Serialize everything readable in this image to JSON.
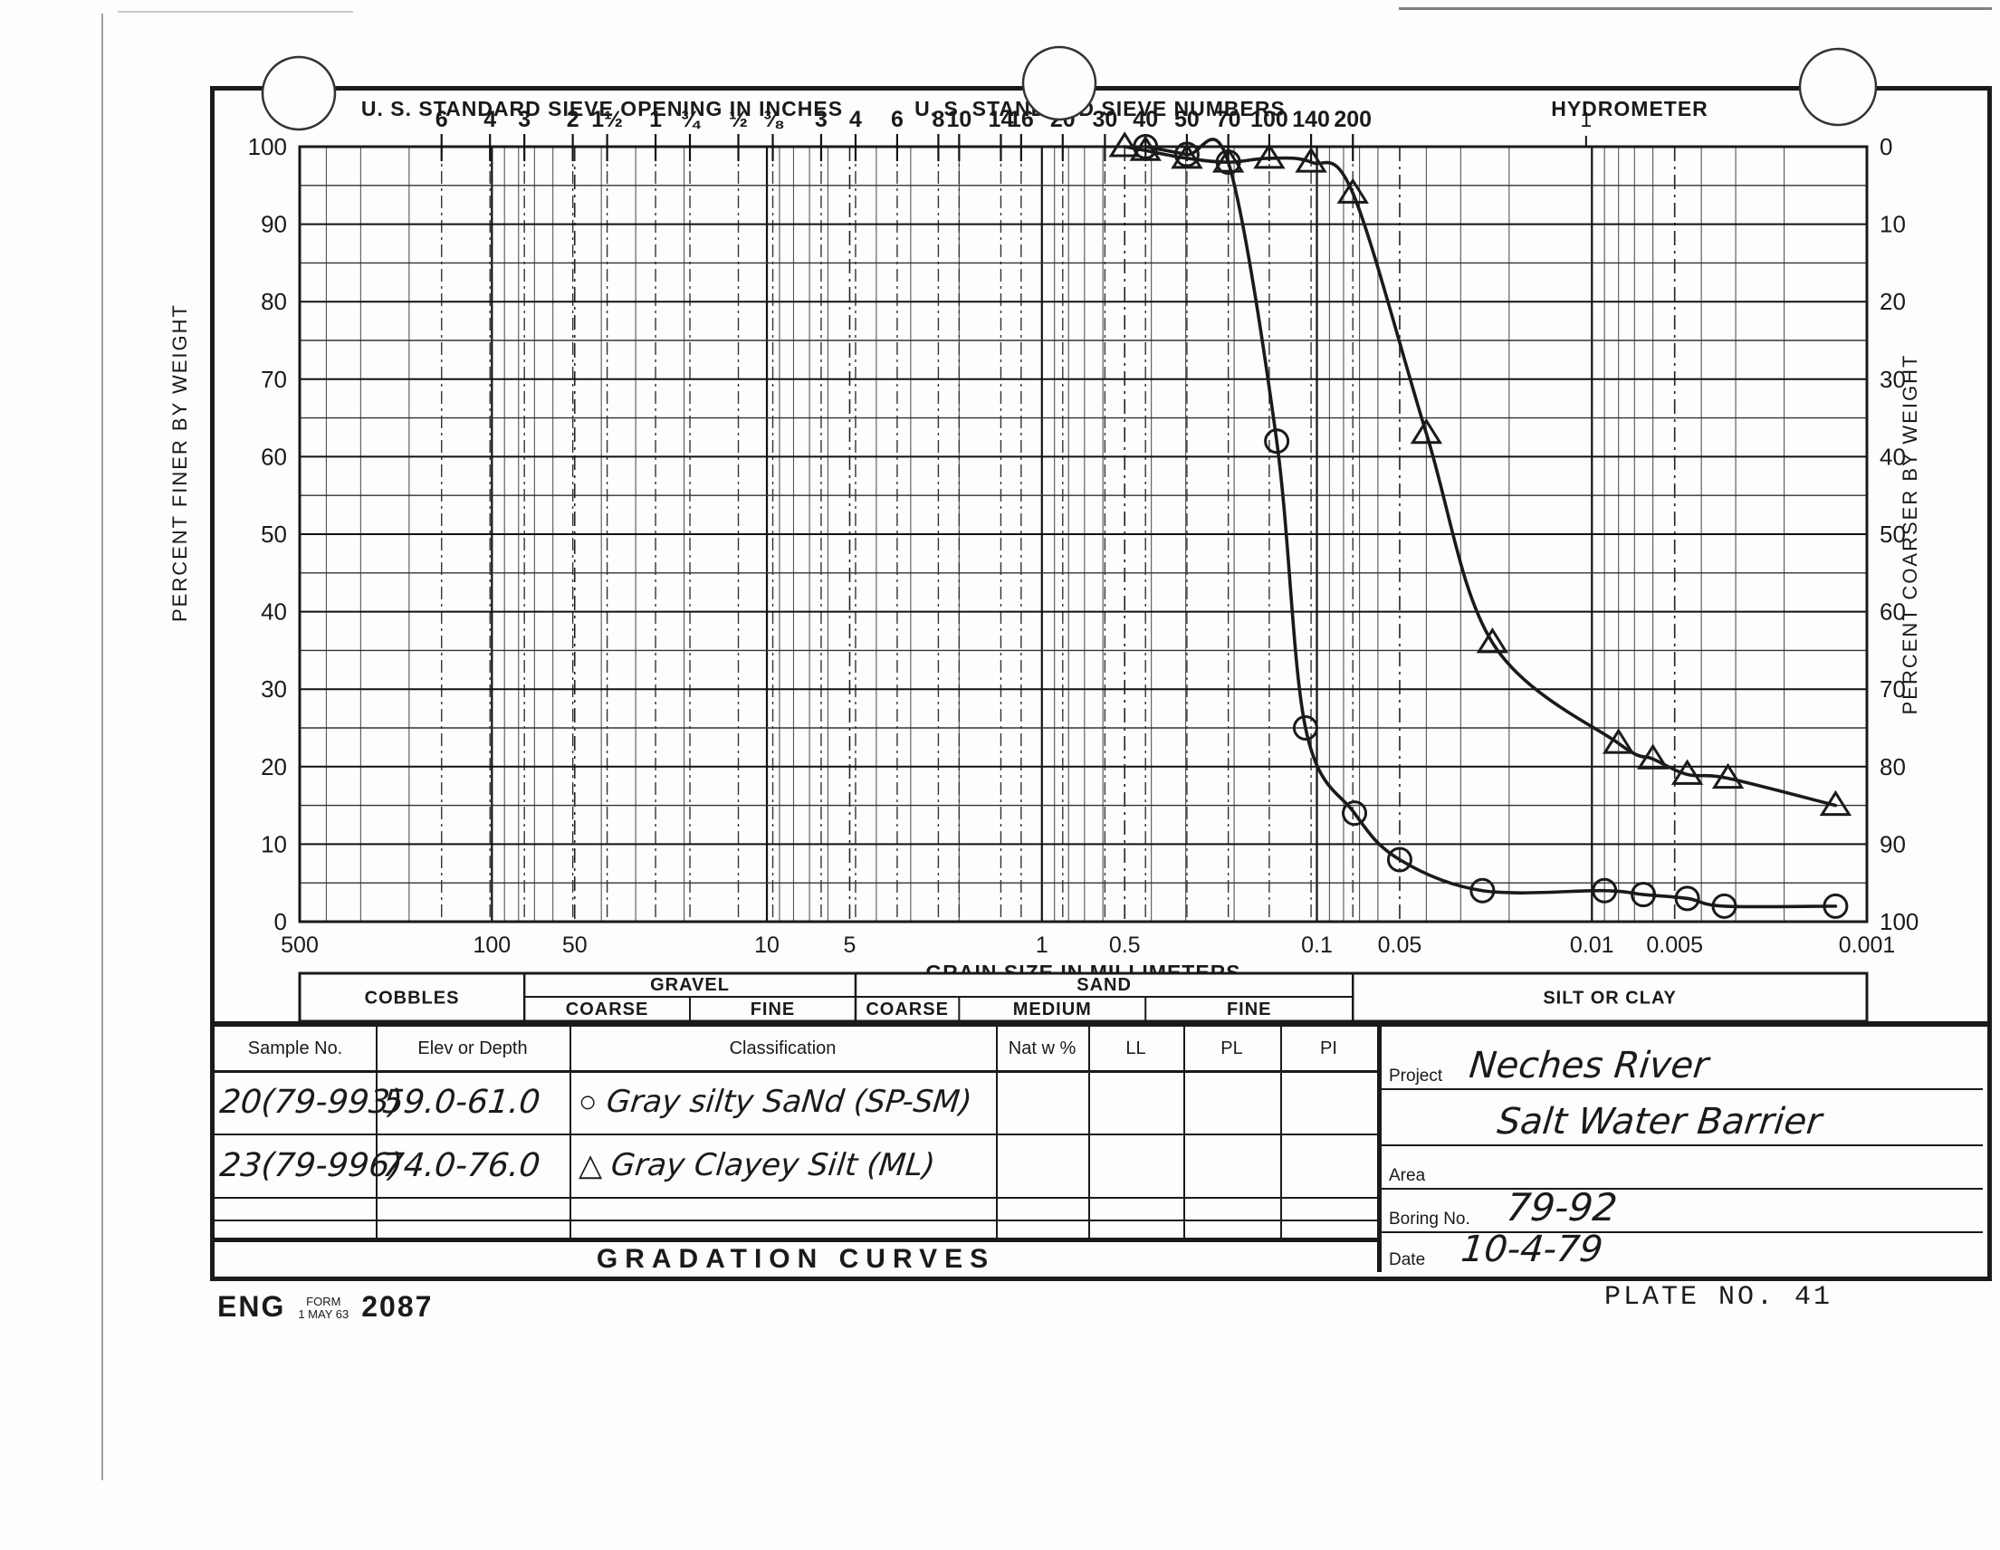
{
  "form": {
    "headers": {
      "inches": "U. S. STANDARD SIEVE OPENING IN INCHES",
      "numbers": "U. S. STANDARD SIEVE NUMBERS",
      "hydrometer": "HYDROMETER"
    },
    "axis": {
      "left_title": "PERCENT FINER BY WEIGHT",
      "right_title": "PERCENT COARSER BY WEIGHT",
      "bottom_title": "GRAIN SIZE IN MILLIMETERS"
    },
    "band": {
      "cobbles": "COBBLES",
      "gravel": {
        "label": "GRAVEL",
        "subs": [
          "COARSE",
          "FINE"
        ]
      },
      "sand": {
        "label": "SAND",
        "subs": [
          "COARSE",
          "MEDIUM",
          "FINE"
        ]
      },
      "silt": "SILT OR CLAY"
    },
    "table": {
      "headers": [
        "Sample No.",
        "Elev or Depth",
        "Classification",
        "Nat w %",
        "LL",
        "PL",
        "PI"
      ],
      "rows": [
        {
          "sample": "20(79-993)",
          "elev": "59.0-61.0",
          "marker": "circle",
          "classification": "Gray silty SaNd  (SP-SM)",
          "nat": "",
          "ll": "",
          "pl": "",
          "pi": ""
        },
        {
          "sample": "23(79-996)",
          "elev": "74.0-76.0",
          "marker": "triangle",
          "classification": "Gray Clayey Silt  (ML)",
          "nat": "",
          "ll": "",
          "pl": "",
          "pi": ""
        }
      ]
    },
    "panel": {
      "project_label": "Project",
      "project_value_line1": "Neches River",
      "project_value_line2": "Salt Water Barrier",
      "area_label": "Area",
      "area_value": "",
      "boring_label": "Boring No.",
      "boring_value": "79-92",
      "date_label": "Date",
      "date_value": "10-4-79"
    },
    "title": "GRADATION CURVES",
    "footer": {
      "eng": "ENG",
      "form_word": "FORM",
      "form_date": "1 MAY 63",
      "form_number": "2087",
      "plate": "PLATE NO. 41"
    }
  },
  "chart_data": {
    "type": "line",
    "title": "GRADATION CURVES",
    "x_scale": "log",
    "x_unit": "mm",
    "xlim": [
      500,
      0.001
    ],
    "ylim": [
      0,
      100
    ],
    "grid": "on",
    "left_ticks": [
      100,
      90,
      80,
      70,
      60,
      50,
      40,
      30,
      20,
      10,
      0
    ],
    "right_ticks": [
      0,
      10,
      20,
      30,
      40,
      50,
      60,
      70,
      80,
      90,
      100
    ],
    "bottom_ticks": [
      {
        "label": "500",
        "mm": 500
      },
      {
        "label": "100",
        "mm": 100
      },
      {
        "label": "50",
        "mm": 50
      },
      {
        "label": "10",
        "mm": 10
      },
      {
        "label": "5",
        "mm": 5
      },
      {
        "label": "1",
        "mm": 1
      },
      {
        "label": "0.5",
        "mm": 0.5
      },
      {
        "label": "0.1",
        "mm": 0.1
      },
      {
        "label": "0.05",
        "mm": 0.05
      },
      {
        "label": "0.01",
        "mm": 0.01
      },
      {
        "label": "0.005",
        "mm": 0.005
      },
      {
        "label": "0.001",
        "mm": 0.001
      }
    ],
    "sieve_ticks_inches": [
      {
        "label": "6",
        "mm": 152.4
      },
      {
        "label": "4",
        "mm": 101.6
      },
      {
        "label": "3",
        "mm": 76.2
      },
      {
        "label": "2",
        "mm": 50.8
      },
      {
        "label": "1½",
        "mm": 38.1
      },
      {
        "label": "1",
        "mm": 25.4
      },
      {
        "label": "¾",
        "mm": 19.05
      },
      {
        "label": "½",
        "mm": 12.7
      },
      {
        "label": "⅜",
        "mm": 9.52
      }
    ],
    "sieve_ticks_numbers": [
      {
        "label": "3",
        "mm": 6.35
      },
      {
        "label": "4",
        "mm": 4.76
      },
      {
        "label": "6",
        "mm": 3.36
      },
      {
        "label": "8",
        "mm": 2.38
      },
      {
        "label": "10",
        "mm": 2.0
      },
      {
        "label": "14",
        "mm": 1.41
      },
      {
        "label": "16",
        "mm": 1.19
      },
      {
        "label": "20",
        "mm": 0.84
      },
      {
        "label": "30",
        "mm": 0.59
      },
      {
        "label": "40",
        "mm": 0.42
      },
      {
        "label": "50",
        "mm": 0.297
      },
      {
        "label": "70",
        "mm": 0.21
      },
      {
        "label": "100",
        "mm": 0.149
      },
      {
        "label": "140",
        "mm": 0.105
      },
      {
        "label": "200",
        "mm": 0.074
      }
    ],
    "hydrometer_ticks": [
      {
        "label": "1",
        "mm": 0.0105
      }
    ],
    "band_boundaries_mm": {
      "cobbles_gravel": 76.2,
      "gravel_coarse_fine": 19.05,
      "gravel_sand": 4.76,
      "sand_coarse_medium": 2.0,
      "sand_medium_fine": 0.42,
      "sand_silt": 0.074
    },
    "series": [
      {
        "name": "20(79-993) Gray silty SaNd (SP-SM)",
        "marker": "circle",
        "points": [
          [
            0.42,
            100
          ],
          [
            0.297,
            99
          ],
          [
            0.21,
            98
          ],
          [
            0.14,
            62
          ],
          [
            0.11,
            25
          ],
          [
            0.073,
            14
          ],
          [
            0.05,
            8
          ],
          [
            0.025,
            4
          ],
          [
            0.009,
            4
          ],
          [
            0.0065,
            3.5
          ],
          [
            0.0045,
            3
          ],
          [
            0.0033,
            2
          ],
          [
            0.0013,
            2
          ]
        ]
      },
      {
        "name": "23(79-996) Gray Clayey Silt (ML)",
        "marker": "triangle",
        "points": [
          [
            0.5,
            100
          ],
          [
            0.42,
            99.5
          ],
          [
            0.297,
            98.5
          ],
          [
            0.21,
            98
          ],
          [
            0.149,
            98.5
          ],
          [
            0.105,
            98
          ],
          [
            0.074,
            94
          ],
          [
            0.04,
            63
          ],
          [
            0.023,
            36
          ],
          [
            0.008,
            23
          ],
          [
            0.006,
            21
          ],
          [
            0.0045,
            19
          ],
          [
            0.0032,
            18.5
          ],
          [
            0.0013,
            15
          ]
        ]
      }
    ]
  }
}
